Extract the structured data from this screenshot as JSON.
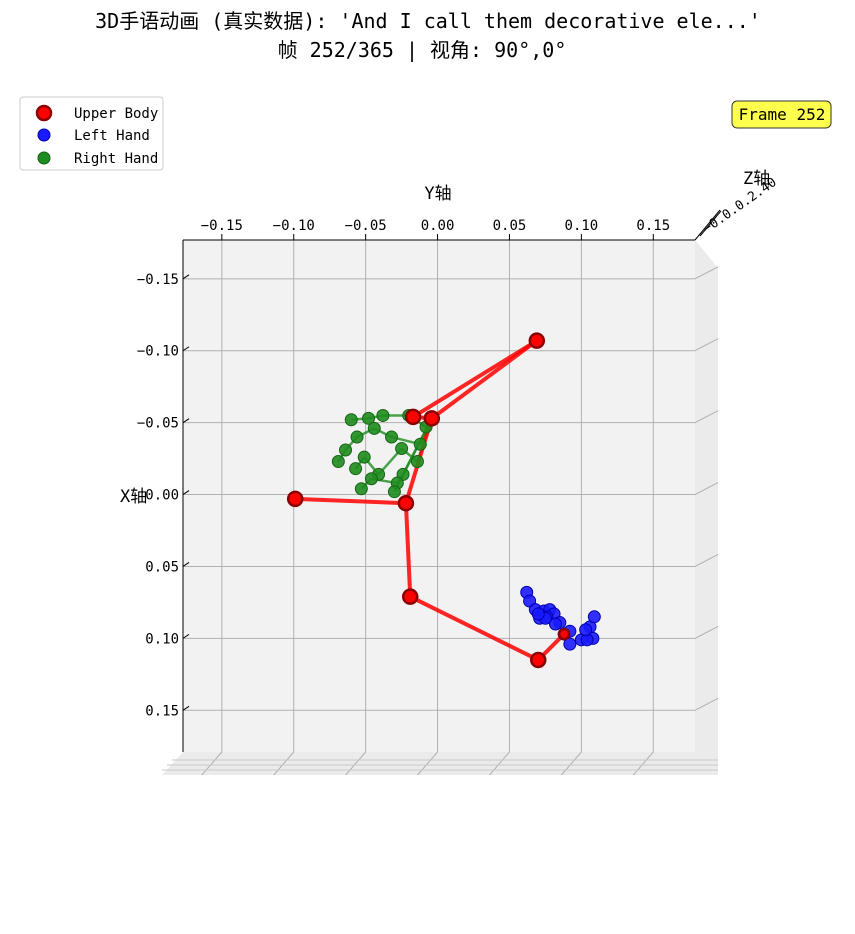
{
  "title_line1": "3D手语动画 (真实数据): 'And I call them decorative ele...'",
  "title_line2": "帧 252/365 | 视角: 90°,0°",
  "frame_badge": "Frame 252",
  "colors": {
    "upper": "#ff0000",
    "upper_edge": "#8b0000",
    "left": "#0000ff",
    "right": "#1e8c1e",
    "badge_bg": "#ffff4d",
    "pane": "#f2f2f2"
  },
  "chart_data": {
    "type": "scatter",
    "projection": "3D view, elevation 90°, azimuth 0°",
    "xlabel": "Y轴",
    "ylabel": "X轴",
    "zlabel": "Z轴",
    "y_axis_ticks": [
      "−0.15",
      "−0.10",
      "−0.05",
      "0.00",
      "0.05",
      "0.10",
      "0.15"
    ],
    "y_axis_tick_values": [
      -0.15,
      -0.1,
      -0.05,
      0.0,
      0.05,
      0.1,
      0.15
    ],
    "x_axis_ticks": [
      "−0.15",
      "−0.10",
      "−0.05",
      "0.00",
      "0.05",
      "0.10",
      "0.15"
    ],
    "x_axis_tick_values": [
      -0.15,
      -0.1,
      -0.05,
      0.0,
      0.05,
      0.1,
      0.15
    ],
    "y_range": [
      -0.177,
      0.179
    ],
    "x_range": [
      -0.177,
      0.179
    ],
    "legend": {
      "placement": "top-left",
      "entries": [
        "Upper Body",
        "Left Hand",
        "Right Hand"
      ]
    },
    "series": [
      {
        "name": "Upper Body",
        "points": [
          {
            "y": 0.069,
            "x": -0.107
          },
          {
            "y": -0.017,
            "x": -0.054
          },
          {
            "y": -0.004,
            "x": -0.053
          },
          {
            "y": -0.099,
            "x": 0.003
          },
          {
            "y": -0.022,
            "x": 0.006
          },
          {
            "y": -0.019,
            "x": 0.071
          },
          {
            "y": 0.07,
            "x": 0.115
          },
          {
            "y": 0.088,
            "x": 0.097
          }
        ],
        "edges": [
          [
            0,
            1
          ],
          [
            0,
            2
          ],
          [
            1,
            2
          ],
          [
            2,
            4
          ],
          [
            3,
            4
          ],
          [
            4,
            5
          ],
          [
            5,
            6
          ],
          [
            6,
            7
          ]
        ]
      },
      {
        "name": "Left Hand",
        "points": [
          {
            "y": 0.088,
            "x": 0.097
          },
          {
            "y": 0.062,
            "x": 0.068
          },
          {
            "y": 0.064,
            "x": 0.074
          },
          {
            "y": 0.068,
            "x": 0.08
          },
          {
            "y": 0.071,
            "x": 0.086
          },
          {
            "y": 0.074,
            "x": 0.081
          },
          {
            "y": 0.078,
            "x": 0.08
          },
          {
            "y": 0.081,
            "x": 0.083
          },
          {
            "y": 0.085,
            "x": 0.089
          },
          {
            "y": 0.076,
            "x": 0.085
          },
          {
            "y": 0.082,
            "x": 0.09
          },
          {
            "y": 0.092,
            "x": 0.095
          },
          {
            "y": 0.1,
            "x": 0.101
          },
          {
            "y": 0.108,
            "x": 0.1
          },
          {
            "y": 0.104,
            "x": 0.101
          },
          {
            "y": 0.106,
            "x": 0.092
          },
          {
            "y": 0.109,
            "x": 0.085
          },
          {
            "y": 0.103,
            "x": 0.094
          },
          {
            "y": 0.092,
            "x": 0.104
          },
          {
            "y": 0.075,
            "x": 0.086
          },
          {
            "y": 0.07,
            "x": 0.083
          }
        ]
      },
      {
        "name": "Right Hand",
        "points": [
          {
            "y": -0.004,
            "x": -0.053
          },
          {
            "y": -0.008,
            "x": -0.047
          },
          {
            "y": -0.02,
            "x": -0.055
          },
          {
            "y": -0.038,
            "x": -0.055
          },
          {
            "y": -0.048,
            "x": -0.053
          },
          {
            "y": -0.06,
            "x": -0.052
          },
          {
            "y": -0.012,
            "x": -0.035
          },
          {
            "y": -0.032,
            "x": -0.04
          },
          {
            "y": -0.044,
            "x": -0.046
          },
          {
            "y": -0.056,
            "x": -0.04
          },
          {
            "y": -0.064,
            "x": -0.031
          },
          {
            "y": -0.069,
            "x": -0.023
          },
          {
            "y": -0.014,
            "x": -0.023
          },
          {
            "y": -0.025,
            "x": -0.032
          },
          {
            "y": -0.041,
            "x": -0.014
          },
          {
            "y": -0.051,
            "x": -0.026
          },
          {
            "y": -0.057,
            "x": -0.018
          },
          {
            "y": -0.024,
            "x": -0.014
          },
          {
            "y": -0.028,
            "x": -0.008
          },
          {
            "y": -0.046,
            "x": -0.011
          },
          {
            "y": -0.053,
            "x": -0.004
          },
          {
            "y": -0.03,
            "x": -0.002
          }
        ],
        "edges": [
          [
            0,
            1
          ],
          [
            1,
            2
          ],
          [
            2,
            3
          ],
          [
            3,
            4
          ],
          [
            4,
            5
          ],
          [
            0,
            6
          ],
          [
            6,
            7
          ],
          [
            7,
            8
          ],
          [
            8,
            9
          ],
          [
            9,
            10
          ],
          [
            10,
            11
          ],
          [
            0,
            12
          ],
          [
            12,
            13
          ],
          [
            13,
            14
          ],
          [
            14,
            15
          ],
          [
            15,
            16
          ],
          [
            0,
            17
          ],
          [
            17,
            18
          ],
          [
            18,
            19
          ],
          [
            19,
            20
          ],
          [
            0,
            21
          ]
        ]
      }
    ]
  }
}
